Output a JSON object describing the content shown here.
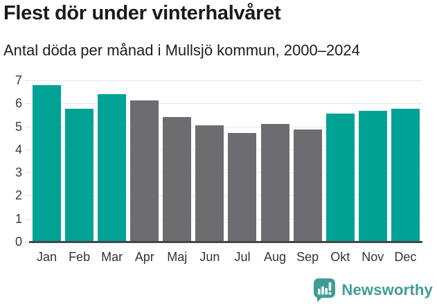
{
  "chart_data": {
    "type": "bar",
    "title": "Flest dör under vinterhalvåret",
    "subtitle": "Antal döda per månad i Mullsjö kommun, 2000–2024",
    "categories": [
      "Jan",
      "Feb",
      "Mar",
      "Apr",
      "Maj",
      "Jun",
      "Jul",
      "Aug",
      "Sep",
      "Okt",
      "Nov",
      "Dec"
    ],
    "values": [
      6.8,
      5.76,
      6.4,
      6.12,
      5.4,
      5.04,
      4.72,
      5.12,
      4.88,
      5.56,
      5.68,
      5.76
    ],
    "highlighted": [
      true,
      true,
      true,
      false,
      false,
      false,
      false,
      false,
      false,
      true,
      true,
      true
    ],
    "xlabel": "",
    "ylabel": "",
    "ylim": [
      0,
      7
    ],
    "yticks": [
      0,
      1,
      2,
      3,
      4,
      5,
      6,
      7
    ],
    "grid": true,
    "legend": "none",
    "colors": {
      "highlight": "#00a296",
      "muted": "#6d6d71",
      "gridline": "#e5e5e5",
      "axis_line": "#454545",
      "axis_text": "#3a3a3a",
      "title_text": "#181b18"
    }
  },
  "branding": {
    "logo_text": "Newsworthy",
    "logo_color": "#3f9d98",
    "logo_icon": "newsworthy-speech-bubble-bar-chart-icon"
  }
}
